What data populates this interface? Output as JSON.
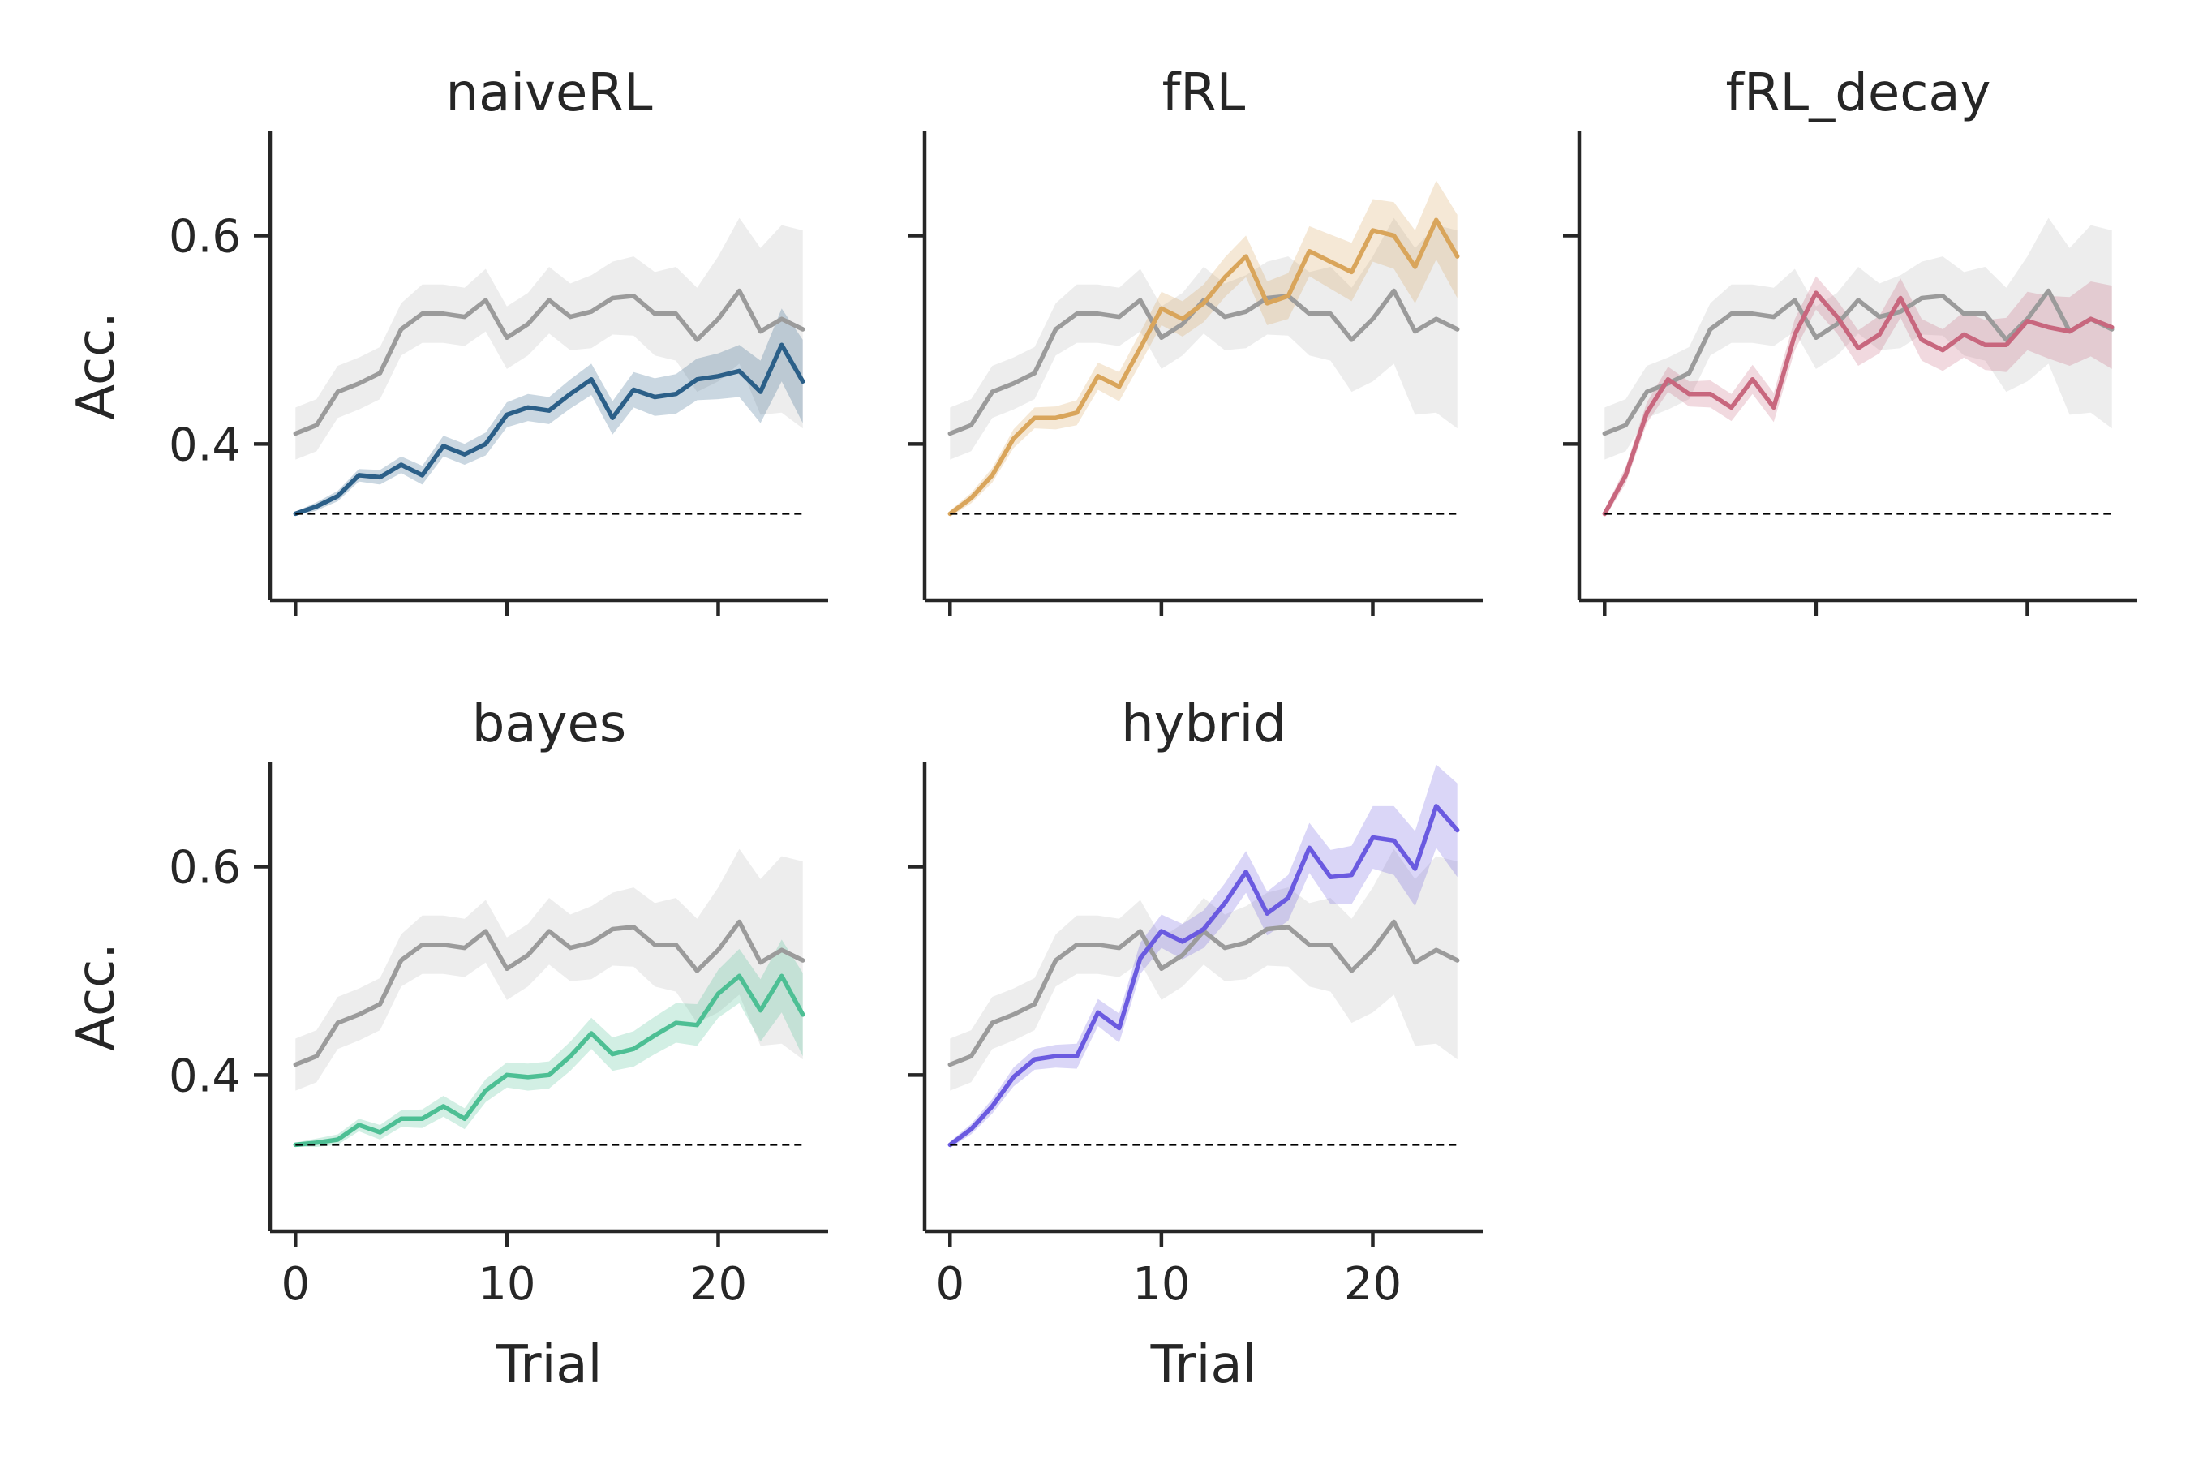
{
  "chart_data": [
    {
      "type": "line",
      "title": "naiveRL",
      "xlabel": "",
      "ylabel": "Acc.",
      "xlim": [
        -1.2,
        25.2
      ],
      "ylim": [
        0.25,
        0.7
      ],
      "xticks": [
        0,
        10,
        20
      ],
      "yticks": [
        0.4,
        0.6
      ],
      "xtick_labels_visible": false,
      "ytick_labels_visible": true,
      "x": [
        0,
        1,
        2,
        3,
        4,
        5,
        6,
        7,
        8,
        9,
        10,
        11,
        12,
        13,
        14,
        15,
        16,
        17,
        18,
        19,
        20,
        21,
        22,
        23,
        24
      ],
      "series": [
        {
          "role": "reference",
          "color": "#9b9b9b",
          "values": [
            0.41,
            0.418,
            0.45,
            0.458,
            0.468,
            0.51,
            0.525,
            0.525,
            0.522,
            0.538,
            0.502,
            0.515,
            0.538,
            0.522,
            0.527,
            0.54,
            0.542,
            0.525,
            0.525,
            0.5,
            0.52,
            0.547,
            0.508,
            0.52,
            0.51
          ],
          "ci": [
            0.025,
            0.025,
            0.025,
            0.025,
            0.025,
            0.025,
            0.028,
            0.028,
            0.028,
            0.03,
            0.03,
            0.03,
            0.032,
            0.032,
            0.035,
            0.035,
            0.038,
            0.04,
            0.045,
            0.05,
            0.06,
            0.07,
            0.08,
            0.09,
            0.095
          ]
        },
        {
          "role": "model",
          "color": "#2b5f88",
          "values": [
            0.333,
            0.34,
            0.35,
            0.37,
            0.368,
            0.38,
            0.37,
            0.398,
            0.39,
            0.4,
            0.428,
            0.435,
            0.432,
            0.448,
            0.462,
            0.425,
            0.452,
            0.445,
            0.448,
            0.462,
            0.465,
            0.47,
            0.45,
            0.495,
            0.46
          ],
          "ci": [
            0.002,
            0.004,
            0.005,
            0.006,
            0.007,
            0.008,
            0.009,
            0.01,
            0.01,
            0.011,
            0.012,
            0.013,
            0.013,
            0.014,
            0.015,
            0.016,
            0.017,
            0.018,
            0.019,
            0.02,
            0.022,
            0.025,
            0.03,
            0.035,
            0.04
          ]
        },
        {
          "role": "chance",
          "color": "#000000",
          "style": "dashed",
          "values": [
            0.333,
            0.333,
            0.333,
            0.333,
            0.333,
            0.333,
            0.333,
            0.333,
            0.333,
            0.333,
            0.333,
            0.333,
            0.333,
            0.333,
            0.333,
            0.333,
            0.333,
            0.333,
            0.333,
            0.333,
            0.333,
            0.333,
            0.333,
            0.333,
            0.333
          ]
        }
      ]
    },
    {
      "type": "line",
      "title": "fRL",
      "xlabel": "",
      "ylabel": "",
      "xlim": [
        -1.2,
        25.2
      ],
      "ylim": [
        0.25,
        0.7
      ],
      "xticks": [
        0,
        10,
        20
      ],
      "yticks": [
        0.4,
        0.6
      ],
      "xtick_labels_visible": false,
      "ytick_labels_visible": false,
      "x": [
        0,
        1,
        2,
        3,
        4,
        5,
        6,
        7,
        8,
        9,
        10,
        11,
        12,
        13,
        14,
        15,
        16,
        17,
        18,
        19,
        20,
        21,
        22,
        23,
        24
      ],
      "series": [
        {
          "role": "reference",
          "color": "#9b9b9b",
          "values": [
            0.41,
            0.418,
            0.45,
            0.458,
            0.468,
            0.51,
            0.525,
            0.525,
            0.522,
            0.538,
            0.502,
            0.515,
            0.538,
            0.522,
            0.527,
            0.54,
            0.542,
            0.525,
            0.525,
            0.5,
            0.52,
            0.547,
            0.508,
            0.52,
            0.51
          ],
          "ci": [
            0.025,
            0.025,
            0.025,
            0.025,
            0.025,
            0.025,
            0.028,
            0.028,
            0.028,
            0.03,
            0.03,
            0.03,
            0.032,
            0.032,
            0.035,
            0.035,
            0.038,
            0.04,
            0.045,
            0.05,
            0.06,
            0.07,
            0.08,
            0.09,
            0.095
          ]
        },
        {
          "role": "model",
          "color": "#d9a55b",
          "values": [
            0.333,
            0.348,
            0.37,
            0.405,
            0.425,
            0.425,
            0.43,
            0.465,
            0.455,
            0.492,
            0.53,
            0.52,
            0.535,
            0.56,
            0.58,
            0.535,
            0.542,
            0.585,
            0.575,
            0.565,
            0.605,
            0.6,
            0.57,
            0.615,
            0.58
          ],
          "ci": [
            0.003,
            0.005,
            0.007,
            0.009,
            0.01,
            0.011,
            0.012,
            0.013,
            0.014,
            0.015,
            0.016,
            0.017,
            0.018,
            0.019,
            0.02,
            0.021,
            0.022,
            0.024,
            0.026,
            0.028,
            0.03,
            0.032,
            0.035,
            0.038,
            0.04
          ]
        },
        {
          "role": "chance",
          "color": "#000000",
          "style": "dashed",
          "values": [
            0.333,
            0.333,
            0.333,
            0.333,
            0.333,
            0.333,
            0.333,
            0.333,
            0.333,
            0.333,
            0.333,
            0.333,
            0.333,
            0.333,
            0.333,
            0.333,
            0.333,
            0.333,
            0.333,
            0.333,
            0.333,
            0.333,
            0.333,
            0.333,
            0.333
          ]
        }
      ]
    },
    {
      "type": "line",
      "title": "fRL_decay",
      "xlabel": "",
      "ylabel": "",
      "xlim": [
        -1.2,
        25.2
      ],
      "ylim": [
        0.25,
        0.7
      ],
      "xticks": [
        0,
        10,
        20
      ],
      "yticks": [
        0.4,
        0.6
      ],
      "xtick_labels_visible": false,
      "ytick_labels_visible": false,
      "x": [
        0,
        1,
        2,
        3,
        4,
        5,
        6,
        7,
        8,
        9,
        10,
        11,
        12,
        13,
        14,
        15,
        16,
        17,
        18,
        19,
        20,
        21,
        22,
        23,
        24
      ],
      "series": [
        {
          "role": "reference",
          "color": "#9b9b9b",
          "values": [
            0.41,
            0.418,
            0.45,
            0.458,
            0.468,
            0.51,
            0.525,
            0.525,
            0.522,
            0.538,
            0.502,
            0.515,
            0.538,
            0.522,
            0.527,
            0.54,
            0.542,
            0.525,
            0.525,
            0.5,
            0.52,
            0.547,
            0.508,
            0.52,
            0.51
          ],
          "ci": [
            0.025,
            0.025,
            0.025,
            0.025,
            0.025,
            0.025,
            0.028,
            0.028,
            0.028,
            0.03,
            0.03,
            0.03,
            0.032,
            0.032,
            0.035,
            0.035,
            0.038,
            0.04,
            0.045,
            0.05,
            0.06,
            0.07,
            0.08,
            0.09,
            0.095
          ]
        },
        {
          "role": "model",
          "color": "#c8677e",
          "values": [
            0.333,
            0.37,
            0.43,
            0.462,
            0.448,
            0.448,
            0.435,
            0.462,
            0.435,
            0.505,
            0.545,
            0.522,
            0.492,
            0.505,
            0.54,
            0.5,
            0.49,
            0.505,
            0.495,
            0.495,
            0.518,
            0.512,
            0.508,
            0.52,
            0.512
          ],
          "ci": [
            0.004,
            0.008,
            0.01,
            0.012,
            0.012,
            0.013,
            0.013,
            0.014,
            0.014,
            0.015,
            0.016,
            0.016,
            0.017,
            0.018,
            0.019,
            0.02,
            0.02,
            0.022,
            0.024,
            0.026,
            0.028,
            0.03,
            0.033,
            0.036,
            0.04
          ]
        },
        {
          "role": "chance",
          "color": "#000000",
          "style": "dashed",
          "values": [
            0.333,
            0.333,
            0.333,
            0.333,
            0.333,
            0.333,
            0.333,
            0.333,
            0.333,
            0.333,
            0.333,
            0.333,
            0.333,
            0.333,
            0.333,
            0.333,
            0.333,
            0.333,
            0.333,
            0.333,
            0.333,
            0.333,
            0.333,
            0.333,
            0.333
          ]
        }
      ]
    },
    {
      "type": "line",
      "title": "bayes",
      "xlabel": "Trial",
      "ylabel": "Acc.",
      "xlim": [
        -1.2,
        25.2
      ],
      "ylim": [
        0.25,
        0.7
      ],
      "xticks": [
        0,
        10,
        20
      ],
      "yticks": [
        0.4,
        0.6
      ],
      "xtick_labels_visible": true,
      "ytick_labels_visible": true,
      "x": [
        0,
        1,
        2,
        3,
        4,
        5,
        6,
        7,
        8,
        9,
        10,
        11,
        12,
        13,
        14,
        15,
        16,
        17,
        18,
        19,
        20,
        21,
        22,
        23,
        24
      ],
      "series": [
        {
          "role": "reference",
          "color": "#9b9b9b",
          "values": [
            0.41,
            0.418,
            0.45,
            0.458,
            0.468,
            0.51,
            0.525,
            0.525,
            0.522,
            0.538,
            0.502,
            0.515,
            0.538,
            0.522,
            0.527,
            0.54,
            0.542,
            0.525,
            0.525,
            0.5,
            0.52,
            0.547,
            0.508,
            0.52,
            0.51
          ],
          "ci": [
            0.025,
            0.025,
            0.025,
            0.025,
            0.025,
            0.025,
            0.028,
            0.028,
            0.028,
            0.03,
            0.03,
            0.03,
            0.032,
            0.032,
            0.035,
            0.035,
            0.038,
            0.04,
            0.045,
            0.05,
            0.06,
            0.07,
            0.08,
            0.09,
            0.095
          ]
        },
        {
          "role": "model",
          "color": "#4dbf94",
          "values": [
            0.333,
            0.335,
            0.338,
            0.352,
            0.345,
            0.358,
            0.358,
            0.37,
            0.358,
            0.385,
            0.4,
            0.398,
            0.4,
            0.418,
            0.44,
            0.42,
            0.425,
            0.438,
            0.45,
            0.448,
            0.478,
            0.495,
            0.462,
            0.495,
            0.458
          ],
          "ci": [
            0.002,
            0.004,
            0.005,
            0.006,
            0.007,
            0.008,
            0.009,
            0.01,
            0.01,
            0.011,
            0.012,
            0.013,
            0.013,
            0.014,
            0.015,
            0.016,
            0.017,
            0.018,
            0.019,
            0.02,
            0.023,
            0.026,
            0.03,
            0.035,
            0.04
          ]
        },
        {
          "role": "chance",
          "color": "#000000",
          "style": "dashed",
          "values": [
            0.333,
            0.333,
            0.333,
            0.333,
            0.333,
            0.333,
            0.333,
            0.333,
            0.333,
            0.333,
            0.333,
            0.333,
            0.333,
            0.333,
            0.333,
            0.333,
            0.333,
            0.333,
            0.333,
            0.333,
            0.333,
            0.333,
            0.333,
            0.333,
            0.333
          ]
        }
      ]
    },
    {
      "type": "line",
      "title": "hybrid",
      "xlabel": "Trial",
      "ylabel": "",
      "xlim": [
        -1.2,
        25.2
      ],
      "ylim": [
        0.25,
        0.7
      ],
      "xticks": [
        0,
        10,
        20
      ],
      "yticks": [
        0.4,
        0.6
      ],
      "xtick_labels_visible": true,
      "ytick_labels_visible": false,
      "x": [
        0,
        1,
        2,
        3,
        4,
        5,
        6,
        7,
        8,
        9,
        10,
        11,
        12,
        13,
        14,
        15,
        16,
        17,
        18,
        19,
        20,
        21,
        22,
        23,
        24
      ],
      "series": [
        {
          "role": "reference",
          "color": "#9b9b9b",
          "values": [
            0.41,
            0.418,
            0.45,
            0.458,
            0.468,
            0.51,
            0.525,
            0.525,
            0.522,
            0.538,
            0.502,
            0.515,
            0.538,
            0.522,
            0.527,
            0.54,
            0.542,
            0.525,
            0.525,
            0.5,
            0.52,
            0.547,
            0.508,
            0.52,
            0.51
          ],
          "ci": [
            0.025,
            0.025,
            0.025,
            0.025,
            0.025,
            0.025,
            0.028,
            0.028,
            0.028,
            0.03,
            0.03,
            0.03,
            0.032,
            0.032,
            0.035,
            0.035,
            0.038,
            0.04,
            0.045,
            0.05,
            0.06,
            0.07,
            0.08,
            0.09,
            0.095
          ]
        },
        {
          "role": "model",
          "color": "#6a5ae0",
          "values": [
            0.333,
            0.348,
            0.37,
            0.398,
            0.415,
            0.418,
            0.418,
            0.46,
            0.445,
            0.512,
            0.538,
            0.528,
            0.54,
            0.565,
            0.595,
            0.555,
            0.57,
            0.618,
            0.59,
            0.592,
            0.628,
            0.625,
            0.598,
            0.658,
            0.635
          ],
          "ci": [
            0.003,
            0.005,
            0.007,
            0.009,
            0.01,
            0.011,
            0.012,
            0.013,
            0.014,
            0.015,
            0.016,
            0.017,
            0.018,
            0.019,
            0.02,
            0.021,
            0.022,
            0.024,
            0.026,
            0.028,
            0.03,
            0.033,
            0.036,
            0.04,
            0.045
          ]
        },
        {
          "role": "chance",
          "color": "#000000",
          "style": "dashed",
          "values": [
            0.333,
            0.333,
            0.333,
            0.333,
            0.333,
            0.333,
            0.333,
            0.333,
            0.333,
            0.333,
            0.333,
            0.333,
            0.333,
            0.333,
            0.333,
            0.333,
            0.333,
            0.333,
            0.333,
            0.333,
            0.333,
            0.333,
            0.333,
            0.333,
            0.333
          ]
        }
      ]
    }
  ]
}
